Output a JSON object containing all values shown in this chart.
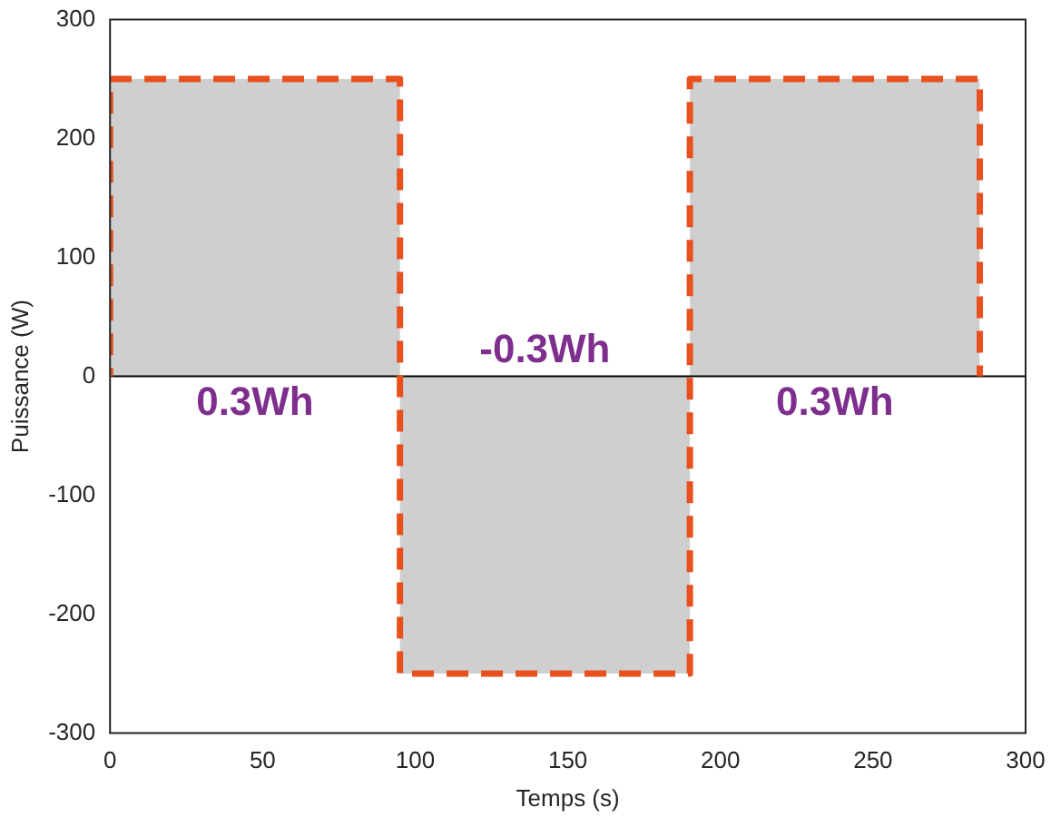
{
  "chart_data": {
    "type": "area",
    "xlabel": "Temps (s)",
    "ylabel": "Puissance (W)",
    "xlim": [
      0,
      300
    ],
    "ylim": [
      -300,
      300
    ],
    "xticks": [
      0,
      50,
      100,
      150,
      200,
      250,
      300
    ],
    "yticks": [
      -300,
      -200,
      -100,
      0,
      100,
      200,
      300
    ],
    "grid": false,
    "legend": false,
    "series": [
      {
        "color": "#e8501e",
        "line_style": "dashed",
        "x": [
          0,
          0,
          95,
          95,
          190,
          190,
          285,
          285
        ],
        "values": [
          0,
          250,
          250,
          -250,
          -250,
          250,
          250,
          0
        ]
      }
    ],
    "ref_lines": [
      {
        "axis": "y",
        "value": 0,
        "color": "#000000"
      }
    ],
    "annotations": [
      "0.3Wh",
      "-0.3Wh",
      "0.3Wh"
    ]
  }
}
